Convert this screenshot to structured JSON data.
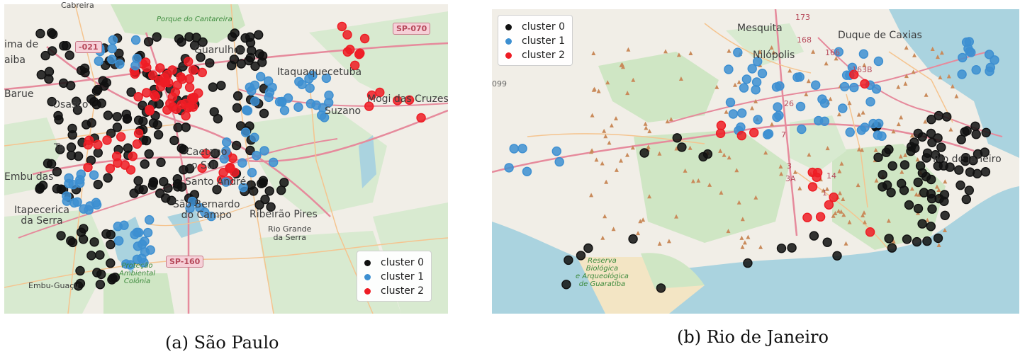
{
  "colors": {
    "cluster_0": "#111111",
    "cluster_1": "#3d8fd1",
    "cluster_2": "#ee1c24",
    "land": "#f1eee7",
    "park": "#cfe6c4",
    "water": "#aad3df",
    "road_major": "#e68a9c",
    "road_minor": "#f5c48f"
  },
  "legend": [
    "cluster 0",
    "cluster 1",
    "cluster 2"
  ],
  "panel_a": {
    "caption": "(a) São Paulo",
    "places": {
      "cabreira": "Cabreira",
      "porque": "Porque\ndo Cantareira",
      "ima_de": "ima de",
      "aiba": "aiba",
      "sp021": "-021",
      "guarulhos": "Guarulhos",
      "sp070": "SP-070",
      "itaquaquecetuba": "Itaquaquecetuba",
      "barueri": "Barue",
      "osasco": "Osasco",
      "mogi": "Mogi das Cruzes",
      "suzano": "Suzano",
      "ta": "Ta",
      "caetano": "Caetano",
      "do_sul": "o Sul",
      "embu_das": "Embu das",
      "santo_andre": "Santo André",
      "itapecerica": "Itapecerica\nda Serra",
      "sao_bernardo": "São Bernardo\ndo Campo",
      "ribeirao": "Ribeirão Pires",
      "rio_grande": "Rio Grande\nda Serra",
      "sp160": "SP-160",
      "protecao": "Proteção\nAmbiental\nColônia",
      "embu_guacu": "Embu-Guaçu"
    }
  },
  "panel_b": {
    "caption": "(b) Rio de Janeiro",
    "places": {
      "mesquita": "Mesquita",
      "duque": "Duque de Caxias",
      "nilopolis": "Nilópolis",
      "rio": "Rio de Janeiro",
      "reserva": "Reserva\nBiológica\ne Arqueológica\nde Guaratiba",
      "r173": "173",
      "r168": "168",
      "r166": "166",
      "r163b": "163B",
      "r26": "26",
      "r14": "14",
      "r3": "3",
      "r3a": "3A",
      "r099": "099",
      "r1": "1",
      "r7": "7"
    }
  }
}
